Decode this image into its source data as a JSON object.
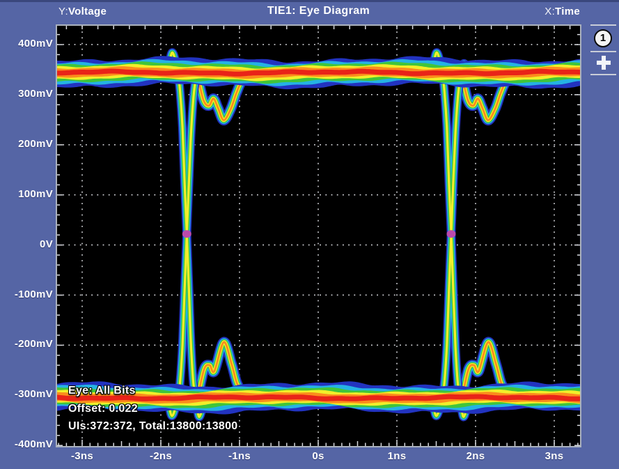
{
  "header": {
    "y_prefix": "Y:",
    "y_label": "Voltage",
    "title": "TIE1: Eye Diagram",
    "x_prefix": "X:",
    "x_label": "Time"
  },
  "side_panel": {
    "plot_number_badge": "1",
    "add_plot_icon": "plus-icon"
  },
  "colors": {
    "chrome_blue": "#5565a5",
    "plot_background": "#000000",
    "grid_dots": "#e4e5ea",
    "plot_border": "#aab1be",
    "label_text": "#ffffff"
  },
  "chart_data": {
    "type": "heatmap",
    "variant": "eye-diagram",
    "title": "TIE1: Eye Diagram",
    "xlabel": "Time",
    "ylabel": "Voltage",
    "x_ticks": [
      "-3ns",
      "-2ns",
      "-1ns",
      "0s",
      "1ns",
      "2ns",
      "3ns"
    ],
    "x_tick_values_ns": [
      -3,
      -2,
      -1,
      0,
      1,
      2,
      3
    ],
    "y_ticks": [
      "400mV",
      "300mV",
      "200mV",
      "100mV",
      "0V",
      "-100mV",
      "-200mV",
      "-300mV",
      "-400mV"
    ],
    "y_tick_values_mV": [
      400,
      300,
      200,
      100,
      0,
      -100,
      -200,
      -300,
      -400
    ],
    "x_range_ns": [
      -3.32,
      3.33
    ],
    "y_range_mV": [
      -401,
      437
    ],
    "grid": "dotted",
    "legend": "none",
    "high_rail_mV": 344,
    "low_rail_mV": -305,
    "crossing_times_ns": [
      -1.67,
      1.69
    ],
    "crossing_level_mV": 22,
    "overshoot_peak_mV": 384,
    "undershoot_trough_mV": -343,
    "ring_top_min_mV": 249,
    "ring_bottom_max_mV": -194,
    "eye_type": "All Bits",
    "offset": "0.022",
    "uis": "372:372",
    "total": "13800:13800",
    "annotations": [
      "Eye: All Bits",
      "Offset: 0.022",
      "UIs:372:372, Total:13800:13800"
    ],
    "palette_cold_to_hot": [
      "#2233c0",
      "#25b2e4",
      "#40c53a",
      "#f2ee2a",
      "#fb8c1c",
      "#e92318"
    ],
    "crossing_marker_color": "#bb4aad",
    "waveform_segments": {
      "rising_edge": [
        [
          -0.5,
          -305
        ],
        [
          -0.32,
          -306
        ],
        [
          -0.255,
          -300
        ],
        [
          -0.19,
          -341
        ],
        [
          -0.115,
          -306
        ],
        [
          -0.085,
          -272
        ],
        [
          -0.055,
          -200
        ],
        [
          -0.028,
          -90
        ],
        [
          0,
          22
        ],
        [
          0.028,
          130
        ],
        [
          0.055,
          226
        ],
        [
          0.085,
          295
        ],
        [
          0.12,
          338
        ],
        [
          0.16,
          362
        ],
        [
          0.22,
          346
        ]
      ],
      "falling_edge": [
        [
          -0.5,
          344
        ],
        [
          -0.32,
          346
        ],
        [
          -0.25,
          342
        ],
        [
          -0.185,
          384
        ],
        [
          -0.115,
          344
        ],
        [
          -0.085,
          305
        ],
        [
          -0.055,
          235
        ],
        [
          -0.028,
          125
        ],
        [
          0,
          22
        ],
        [
          0.028,
          -95
        ],
        [
          0.055,
          -205
        ],
        [
          0.085,
          -278
        ],
        [
          0.12,
          -312
        ],
        [
          0.16,
          -343
        ],
        [
          0.23,
          -305
        ]
      ],
      "ring_top": [
        [
          0.13,
          344
        ],
        [
          0.21,
          290
        ],
        [
          0.28,
          278
        ],
        [
          0.34,
          292
        ],
        [
          0.4,
          272
        ],
        [
          0.47,
          249
        ],
        [
          0.56,
          272
        ],
        [
          0.63,
          303
        ],
        [
          0.71,
          330
        ],
        [
          0.83,
          342
        ]
      ],
      "ring_bottom": [
        [
          0.14,
          -304
        ],
        [
          0.22,
          -248
        ],
        [
          0.29,
          -240
        ],
        [
          0.35,
          -252
        ],
        [
          0.47,
          -194
        ],
        [
          0.57,
          -238
        ],
        [
          0.64,
          -277
        ],
        [
          0.73,
          -297
        ],
        [
          0.86,
          -304
        ]
      ]
    }
  }
}
